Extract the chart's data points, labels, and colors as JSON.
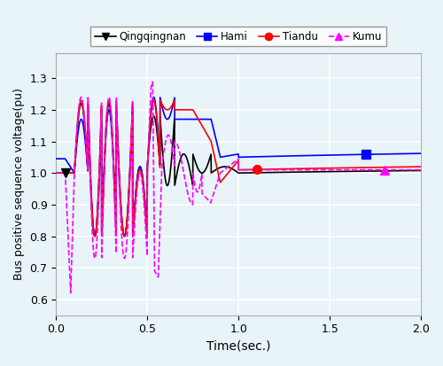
{
  "title": "",
  "xlabel": "Time(sec.)",
  "ylabel": "Bus positive sequence voltage(pu)",
  "xlim": [
    0,
    2
  ],
  "ylim": [
    0.55,
    1.38
  ],
  "yticks": [
    0.6,
    0.7,
    0.8,
    0.9,
    1.0,
    1.1,
    1.2,
    1.3
  ],
  "xticks": [
    0,
    0.5,
    1.0,
    1.5,
    2.0
  ],
  "legend_labels": [
    "Qingqingnan",
    "Hami",
    "Tiandu",
    "Kumu"
  ],
  "colors": {
    "qingqingnan": "#000000",
    "hami": "#0000ff",
    "tiandu": "#ff0000",
    "kumu": "#ff00ff"
  },
  "bg_color": "#e8f4f8",
  "grid_color": "#ffffff",
  "marker_size": 8
}
